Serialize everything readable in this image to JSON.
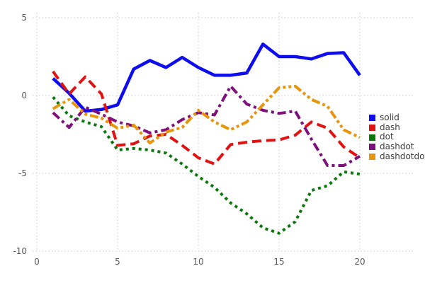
{
  "chart_data": {
    "type": "line",
    "title": "",
    "xlabel": "",
    "ylabel": "",
    "xlim": [
      0,
      20
    ],
    "ylim": [
      -10,
      5
    ],
    "x_ticks": [
      0,
      5,
      10,
      15,
      20
    ],
    "y_ticks": [
      5,
      0,
      -5,
      -10
    ],
    "x_tick_labels": [
      "0",
      "5",
      "10",
      "15",
      "20"
    ],
    "y_tick_labels": [
      "5",
      "0",
      "-5",
      "-10"
    ],
    "grid": true,
    "legend_position": "right",
    "x": [
      1,
      2,
      3,
      4,
      5,
      6,
      7,
      8,
      9,
      10,
      11,
      12,
      13,
      14,
      15,
      16,
      17,
      18,
      19,
      20
    ],
    "series": [
      {
        "name": "solid",
        "color": "#0d0df0",
        "line_style": "solid",
        "values": [
          1.1,
          0.15,
          -1.0,
          -0.9,
          -0.6,
          1.7,
          2.25,
          1.8,
          2.45,
          1.8,
          1.3,
          1.3,
          1.45,
          3.3,
          2.5,
          2.5,
          2.35,
          2.7,
          2.75,
          1.3
        ]
      },
      {
        "name": "dash",
        "color": "#e11212",
        "line_style": "dash",
        "values": [
          1.55,
          0.1,
          1.2,
          0.1,
          -3.2,
          -3.1,
          -2.6,
          -2.5,
          -3.2,
          -4.0,
          -4.4,
          -3.15,
          -3.0,
          -2.9,
          -2.85,
          -2.55,
          -1.7,
          -2.1,
          -3.3,
          -4.0
        ]
      },
      {
        "name": "dot",
        "color": "#0a780a",
        "line_style": "dot",
        "values": [
          -0.1,
          -1.3,
          -1.7,
          -2.0,
          -3.5,
          -3.4,
          -3.5,
          -3.7,
          -4.4,
          -5.2,
          -5.9,
          -6.9,
          -7.6,
          -8.5,
          -8.85,
          -8.1,
          -6.1,
          -5.8,
          -4.9,
          -5.05
        ]
      },
      {
        "name": "dashdot",
        "color": "#7d107d",
        "line_style": "dashdot",
        "values": [
          -1.1,
          -2.05,
          -0.75,
          -1.2,
          -1.7,
          -1.95,
          -2.4,
          -2.2,
          -1.55,
          -1.1,
          -1.25,
          0.6,
          -0.55,
          -0.95,
          -1.15,
          -1.0,
          -2.8,
          -4.5,
          -4.5,
          -3.9
        ]
      },
      {
        "name": "dashdotdot",
        "color": "#e8950c",
        "line_style": "dashdotdot",
        "values": [
          -0.85,
          -0.25,
          -1.2,
          -1.45,
          -2.1,
          -1.9,
          -3.05,
          -2.35,
          -2.05,
          -0.95,
          -1.7,
          -2.2,
          -1.7,
          -0.6,
          0.5,
          0.6,
          -0.25,
          -0.7,
          -2.2,
          -2.7
        ]
      }
    ]
  },
  "legend": {
    "items": [
      "solid",
      "dash",
      "dot",
      "dashdot",
      "dashdotdot"
    ]
  }
}
